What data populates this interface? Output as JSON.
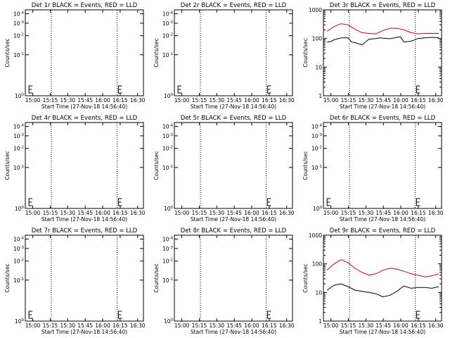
{
  "chart_data": [
    {
      "type": "line",
      "title": "Det 1r BLACK = Events, RED = LLD",
      "xlabel": "Start Time (27-Nov-18 14:56:40)",
      "ylabel": "Counts/sec",
      "scale": "log",
      "ylim": [
        1,
        10
      ],
      "yticks": [
        {
          "v": 1,
          "b": "10",
          "e": "0"
        },
        {
          "v": 3,
          "b": "10",
          "e": "-1"
        },
        {
          "v": 5,
          "b": "10",
          "e": "-2"
        },
        {
          "v": 7,
          "b": "10",
          "e": "-3"
        },
        {
          "v": 9,
          "b": "10",
          "e": "-4"
        }
      ],
      "xlim": [
        -0.052,
        1.638
      ],
      "xticks": [
        "15:00",
        "15:15",
        "15:30",
        "15:45",
        "16:00",
        "16:15",
        "16:30"
      ],
      "xtick_pos": [
        0.055,
        0.305,
        0.555,
        0.805,
        1.055,
        1.305,
        1.555
      ],
      "vlines": [
        0.32,
        1.262
      ],
      "marks": [
        0.0,
        1.28
      ],
      "series": []
    },
    {
      "type": "line",
      "title": "Det 2r BLACK = Events, RED = LLD",
      "xlabel": "Start Time (27-Nov-18 14:56:40)",
      "ylabel": "Counts/sec",
      "scale": "log",
      "ylim": [
        1,
        10
      ],
      "yticks": [
        {
          "v": 1,
          "b": "10",
          "e": "0"
        },
        {
          "v": 3,
          "b": "10",
          "e": "-1"
        },
        {
          "v": 5,
          "b": "10",
          "e": "-2"
        },
        {
          "v": 7,
          "b": "10",
          "e": "-3"
        },
        {
          "v": 9,
          "b": "10",
          "e": "-4"
        }
      ],
      "xlim": [
        -0.052,
        1.638
      ],
      "xticks": [
        "15:00",
        "15:15",
        "15:30",
        "15:45",
        "16:00",
        "16:15",
        "16:30"
      ],
      "xtick_pos": [
        0.055,
        0.305,
        0.555,
        0.805,
        1.055,
        1.305,
        1.555
      ],
      "vlines": [
        0.32,
        1.262
      ],
      "marks": [
        0.0,
        1.28
      ],
      "series": []
    },
    {
      "type": "line",
      "title": "Det 3r BLACK = Events, RED = LLD",
      "xlabel": "Start Time (27-Nov-18 14:56:40)",
      "ylabel": "Counts/sec",
      "scale": "log",
      "ylim": [
        1,
        1000
      ],
      "yticks": [
        {
          "v": 1,
          "b": "1",
          "e": ""
        },
        {
          "v": 10,
          "b": "10",
          "e": ""
        },
        {
          "v": 100,
          "b": "100",
          "e": ""
        },
        {
          "v": 1000,
          "b": "1000",
          "e": ""
        }
      ],
      "xlim": [
        -0.052,
        1.638
      ],
      "xticks": [
        "15:00",
        "15:15",
        "15:30",
        "15:45",
        "16:00",
        "16:15",
        "16:30"
      ],
      "xtick_pos": [
        0.055,
        0.305,
        0.555,
        0.805,
        1.055,
        1.305,
        1.555
      ],
      "vlines": [
        0.32,
        1.262
      ],
      "marks": [
        1.28
      ],
      "series": [
        {
          "color": "#e00000",
          "x": [
            0.0,
            0.1,
            0.2,
            0.3,
            0.4,
            0.5,
            0.6,
            0.7,
            0.8,
            0.9,
            1.0,
            1.1,
            1.2,
            1.3,
            1.4,
            1.5,
            1.6
          ],
          "y": [
            180,
            260,
            330,
            300,
            210,
            160,
            150,
            145,
            190,
            225,
            230,
            200,
            160,
            145,
            150,
            150,
            150
          ]
        },
        {
          "color": "#000000",
          "x": [
            0.0,
            0.05,
            0.1,
            0.2,
            0.3,
            0.35,
            0.4,
            0.5,
            0.6,
            0.7,
            0.75,
            0.8,
            0.9,
            1.0,
            1.05,
            1.1,
            1.2,
            1.3,
            1.4,
            1.5,
            1.6
          ],
          "y": [
            75,
            78,
            90,
            105,
            105,
            75,
            72,
            60,
            95,
            100,
            105,
            102,
            98,
            110,
            115,
            75,
            80,
            100,
            105,
            110,
            105
          ]
        }
      ]
    },
    {
      "type": "line",
      "title": "Det 4r BLACK = Events, RED = LLD",
      "xlabel": "Start Time (27-Nov-18 14:56:40)",
      "ylabel": "Counts/sec",
      "scale": "log",
      "ylim": [
        1,
        10
      ],
      "yticks": [
        {
          "v": 1,
          "b": "10",
          "e": "0"
        },
        {
          "v": 3,
          "b": "10",
          "e": "-1"
        },
        {
          "v": 5,
          "b": "10",
          "e": "-2"
        },
        {
          "v": 7,
          "b": "10",
          "e": "-3"
        },
        {
          "v": 9,
          "b": "10",
          "e": "-4"
        }
      ],
      "xlim": [
        -0.052,
        1.638
      ],
      "xticks": [
        "15:00",
        "15:15",
        "15:30",
        "15:45",
        "16:00",
        "16:15",
        "16:30"
      ],
      "xtick_pos": [
        0.055,
        0.305,
        0.555,
        0.805,
        1.055,
        1.305,
        1.555
      ],
      "vlines": [
        0.32,
        1.262
      ],
      "marks": [
        0.0,
        1.28
      ],
      "series": []
    },
    {
      "type": "line",
      "title": "Det 5r BLACK = Events, RED = LLD",
      "xlabel": "Start Time (27-Nov-18 14:56:40)",
      "ylabel": "Counts/sec",
      "scale": "log",
      "ylim": [
        1,
        10
      ],
      "yticks": [
        {
          "v": 1,
          "b": "10",
          "e": "0"
        },
        {
          "v": 3,
          "b": "10",
          "e": "-1"
        },
        {
          "v": 5,
          "b": "10",
          "e": "-2"
        },
        {
          "v": 7,
          "b": "10",
          "e": "-3"
        },
        {
          "v": 9,
          "b": "10",
          "e": "-4"
        }
      ],
      "xlim": [
        -0.052,
        1.638
      ],
      "xticks": [
        "15:00",
        "15:15",
        "15:30",
        "15:45",
        "16:00",
        "16:15",
        "16:30"
      ],
      "xtick_pos": [
        0.055,
        0.305,
        0.555,
        0.805,
        1.055,
        1.305,
        1.555
      ],
      "vlines": [
        0.32,
        1.262
      ],
      "marks": [
        1.28
      ],
      "series": []
    },
    {
      "type": "line",
      "title": "Det 6r BLACK = Events, RED = LLD",
      "xlabel": "Start Time (27-Nov-18 14:56:40)",
      "ylabel": "Counts/sec",
      "scale": "log",
      "ylim": [
        1,
        10
      ],
      "yticks": [
        {
          "v": 1,
          "b": "10",
          "e": "0"
        },
        {
          "v": 3,
          "b": "10",
          "e": "-1"
        },
        {
          "v": 5,
          "b": "10",
          "e": "-2"
        },
        {
          "v": 7,
          "b": "10",
          "e": "-3"
        },
        {
          "v": 9,
          "b": "10",
          "e": "-4"
        }
      ],
      "xlim": [
        -0.052,
        1.638
      ],
      "xticks": [
        "15:00",
        "15:15",
        "15:30",
        "15:45",
        "16:00",
        "16:15",
        "16:30"
      ],
      "xtick_pos": [
        0.055,
        0.305,
        0.555,
        0.805,
        1.055,
        1.305,
        1.555
      ],
      "vlines": [
        0.32,
        1.262
      ],
      "marks": [
        0.0,
        1.28
      ],
      "series": []
    },
    {
      "type": "line",
      "title": "Det 7r BLACK = Events, RED = LLD",
      "xlabel": "Start Time (27-Nov-18 14:56:40)",
      "ylabel": "Counts/sec",
      "scale": "log",
      "ylim": [
        1,
        10
      ],
      "yticks": [
        {
          "v": 1,
          "b": "10",
          "e": "0"
        },
        {
          "v": 3,
          "b": "10",
          "e": "-1"
        },
        {
          "v": 5,
          "b": "10",
          "e": "-2"
        },
        {
          "v": 7,
          "b": "10",
          "e": "-3"
        },
        {
          "v": 9,
          "b": "10",
          "e": "-4"
        }
      ],
      "xlim": [
        -0.052,
        1.638
      ],
      "xticks": [
        "15:00",
        "15:15",
        "15:30",
        "15:45",
        "16:00",
        "16:15",
        "16:30"
      ],
      "xtick_pos": [
        0.055,
        0.305,
        0.555,
        0.805,
        1.055,
        1.305,
        1.555
      ],
      "vlines": [
        0.32,
        1.262
      ],
      "marks": [
        0.0,
        1.28
      ],
      "series": []
    },
    {
      "type": "line",
      "title": "Det 8r BLACK = Events, RED = LLD",
      "xlabel": "Start Time (27-Nov-18 14:56:40)",
      "ylabel": "Counts/sec",
      "scale": "log",
      "ylim": [
        1,
        10
      ],
      "yticks": [
        {
          "v": 1,
          "b": "10",
          "e": "0"
        },
        {
          "v": 3,
          "b": "10",
          "e": "-1"
        },
        {
          "v": 5,
          "b": "10",
          "e": "-2"
        },
        {
          "v": 7,
          "b": "10",
          "e": "-3"
        },
        {
          "v": 9,
          "b": "10",
          "e": "-4"
        }
      ],
      "xlim": [
        -0.052,
        1.638
      ],
      "xticks": [
        "15:00",
        "15:15",
        "15:30",
        "15:45",
        "16:00",
        "16:15",
        "16:30"
      ],
      "xtick_pos": [
        0.055,
        0.305,
        0.555,
        0.805,
        1.055,
        1.305,
        1.555
      ],
      "vlines": [
        0.32,
        1.262
      ],
      "marks": [
        1.28
      ],
      "series": []
    },
    {
      "type": "line",
      "title": "Det 9r BLACK = Events, RED = LLD",
      "xlabel": "Start Time (27-Nov-18 14:56:40)",
      "ylabel": "Counts/sec",
      "scale": "log",
      "ylim": [
        1,
        1000
      ],
      "yticks": [
        {
          "v": 1,
          "b": "1",
          "e": ""
        },
        {
          "v": 10,
          "b": "10",
          "e": ""
        },
        {
          "v": 100,
          "b": "100",
          "e": ""
        },
        {
          "v": 1000,
          "b": "1000",
          "e": ""
        }
      ],
      "xlim": [
        -0.052,
        1.638
      ],
      "xticks": [
        "15:00",
        "15:15",
        "15:30",
        "15:45",
        "16:00",
        "16:15",
        "16:30"
      ],
      "xtick_pos": [
        0.055,
        0.305,
        0.555,
        0.805,
        1.055,
        1.305,
        1.555
      ],
      "vlines": [
        0.32,
        1.262
      ],
      "marks": [
        1.28
      ],
      "series": [
        {
          "color": "#e00000",
          "x": [
            0.0,
            0.1,
            0.2,
            0.3,
            0.4,
            0.5,
            0.6,
            0.7,
            0.8,
            0.9,
            1.0,
            1.1,
            1.2,
            1.3,
            1.4,
            1.5,
            1.6
          ],
          "y": [
            60,
            100,
            140,
            110,
            70,
            50,
            40,
            45,
            60,
            70,
            65,
            55,
            45,
            40,
            35,
            38,
            45
          ]
        },
        {
          "color": "#000000",
          "x": [
            0.0,
            0.1,
            0.2,
            0.3,
            0.4,
            0.5,
            0.6,
            0.7,
            0.8,
            0.9,
            1.0,
            1.1,
            1.2,
            1.3,
            1.4,
            1.5,
            1.6
          ],
          "y": [
            12,
            18,
            20,
            16,
            12,
            11,
            10,
            9,
            7,
            8,
            11,
            17,
            14,
            15,
            15,
            14,
            16
          ]
        }
      ]
    }
  ]
}
